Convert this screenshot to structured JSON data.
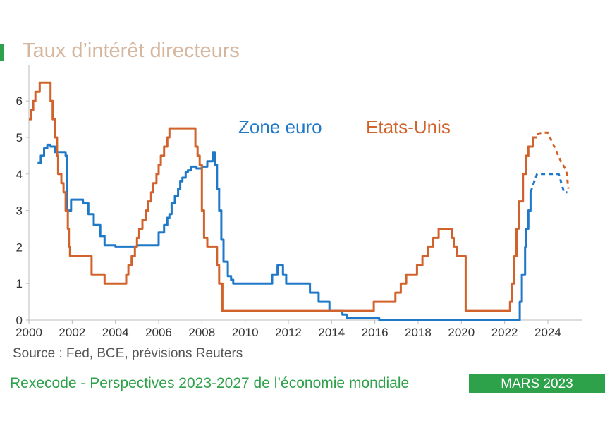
{
  "title": "Taux d’intérêt directeurs",
  "source": "Source : Fed, BCE, prévisions Reuters",
  "footer": "Rexecode - Perspectives 2023-2027 de l’économie mondiale",
  "date_badge": "MARS 2023",
  "colors": {
    "accent": "#2ea24a",
    "euro": "#1f78c8",
    "us": "#d1622b",
    "title": "#d5b79f"
  },
  "chart_data": {
    "type": "line",
    "title": "Taux d’intérêt directeurs",
    "xlabel": "",
    "ylabel": "",
    "xlim": [
      2000,
      2025
    ],
    "ylim": [
      0,
      7
    ],
    "grid": false,
    "legend_placement": "inline-top-center",
    "xticks": [
      "2000",
      "2002",
      "2004",
      "2006",
      "2008",
      "2010",
      "2012",
      "2014",
      "2016",
      "2018",
      "2020",
      "2022",
      "2024"
    ],
    "yticks": [
      "0",
      "1",
      "2",
      "3",
      "4",
      "5",
      "6"
    ],
    "series": [
      {
        "name": "Zone euro",
        "color": "#1f78c8",
        "step": true,
        "x": [
          2000.4,
          2000.55,
          2000.7,
          2000.85,
          2001.0,
          2001.2,
          2001.7,
          2001.75,
          2001.95,
          2002.1,
          2002.5,
          2002.75,
          2003.0,
          2003.3,
          2003.5,
          2004.0,
          2005.0,
          2005.9,
          2006.0,
          2006.25,
          2006.4,
          2006.5,
          2006.6,
          2006.75,
          2006.9,
          2007.0,
          2007.1,
          2007.25,
          2007.35,
          2007.5,
          2007.75,
          2008.0,
          2008.25,
          2008.5,
          2008.6,
          2008.7,
          2008.8,
          2008.9,
          2009.0,
          2009.2,
          2009.35,
          2009.45,
          2010.0,
          2011.25,
          2011.5,
          2011.75,
          2011.9,
          2012.5,
          2013.0,
          2013.4,
          2013.9,
          2014.5,
          2014.7,
          2015.0,
          2016.2,
          2022.6,
          2022.7,
          2022.8,
          2022.95,
          2023.0,
          2023.1,
          2023.2
        ],
        "y": [
          4.3,
          4.5,
          4.7,
          4.8,
          4.75,
          4.6,
          4.5,
          3.0,
          3.3,
          3.3,
          3.2,
          2.9,
          2.6,
          2.3,
          2.05,
          2.0,
          2.05,
          2.05,
          2.4,
          2.6,
          2.8,
          2.9,
          3.2,
          3.4,
          3.6,
          3.8,
          3.9,
          4.05,
          4.1,
          4.2,
          4.15,
          4.2,
          4.35,
          4.6,
          4.25,
          3.6,
          3.0,
          2.2,
          1.6,
          1.2,
          1.1,
          1.0,
          1.0,
          1.25,
          1.5,
          1.25,
          1.0,
          1.0,
          0.75,
          0.5,
          0.25,
          0.15,
          0.05,
          0.05,
          0.0,
          0.0,
          0.5,
          1.25,
          2.0,
          2.5,
          3.0,
          3.5
        ]
      },
      {
        "name": "Zone euro (prévisions Reuters)",
        "color": "#1f78c8",
        "dashed": true,
        "x": [
          2023.2,
          2023.5,
          2024.0,
          2024.5,
          2024.75,
          2024.9
        ],
        "y": [
          3.5,
          4.0,
          4.0,
          4.0,
          3.5,
          3.5
        ]
      },
      {
        "name": "Etats-Unis",
        "color": "#d1622b",
        "step": true,
        "x": [
          2000.0,
          2000.1,
          2000.2,
          2000.3,
          2000.5,
          2001.0,
          2001.1,
          2001.2,
          2001.3,
          2001.35,
          2001.5,
          2001.6,
          2001.7,
          2001.8,
          2001.85,
          2001.9,
          2002.0,
          2002.9,
          2003.5,
          2004.5,
          2004.6,
          2004.75,
          2004.9,
          2005.0,
          2005.1,
          2005.25,
          2005.4,
          2005.5,
          2005.65,
          2005.75,
          2005.9,
          2006.0,
          2006.1,
          2006.25,
          2006.4,
          2006.5,
          2007.7,
          2007.8,
          2007.9,
          2008.0,
          2008.1,
          2008.25,
          2008.7,
          2008.8,
          2008.95,
          2015.95,
          2016.95,
          2017.2,
          2017.45,
          2017.95,
          2018.2,
          2018.45,
          2018.7,
          2018.95,
          2019.55,
          2019.65,
          2019.8,
          2020.2,
          2020.25,
          2022.25,
          2022.35,
          2022.45,
          2022.55,
          2022.65,
          2022.85,
          2023.0,
          2023.1,
          2023.3,
          2023.5
        ],
        "y": [
          5.5,
          5.75,
          6.0,
          6.25,
          6.5,
          6.0,
          5.5,
          5.0,
          4.5,
          4.0,
          3.75,
          3.5,
          3.0,
          2.5,
          2.0,
          1.75,
          1.75,
          1.25,
          1.0,
          1.25,
          1.5,
          1.75,
          2.0,
          2.25,
          2.5,
          2.75,
          3.0,
          3.25,
          3.5,
          3.75,
          4.0,
          4.25,
          4.5,
          4.75,
          5.0,
          5.25,
          4.75,
          4.5,
          4.25,
          3.0,
          2.25,
          2.0,
          1.5,
          1.0,
          0.25,
          0.5,
          0.75,
          1.0,
          1.25,
          1.5,
          1.75,
          2.0,
          2.25,
          2.5,
          2.25,
          2.0,
          1.75,
          0.25,
          0.25,
          0.5,
          1.0,
          1.75,
          2.5,
          3.25,
          4.0,
          4.5,
          4.75,
          5.0,
          5.0
        ]
      },
      {
        "name": "Etats-Unis (prévisions Reuters)",
        "color": "#d1622b",
        "dashed": true,
        "x": [
          2023.5,
          2023.75,
          2024.0,
          2024.3,
          2024.6,
          2024.85,
          2024.95
        ],
        "y": [
          5.1,
          5.13,
          5.13,
          4.75,
          4.35,
          4.1,
          3.6
        ]
      }
    ]
  },
  "legend": [
    {
      "label": "Zone euro",
      "color": "#1f78c8"
    },
    {
      "label": "Etats-Unis",
      "color": "#d1622b"
    }
  ]
}
